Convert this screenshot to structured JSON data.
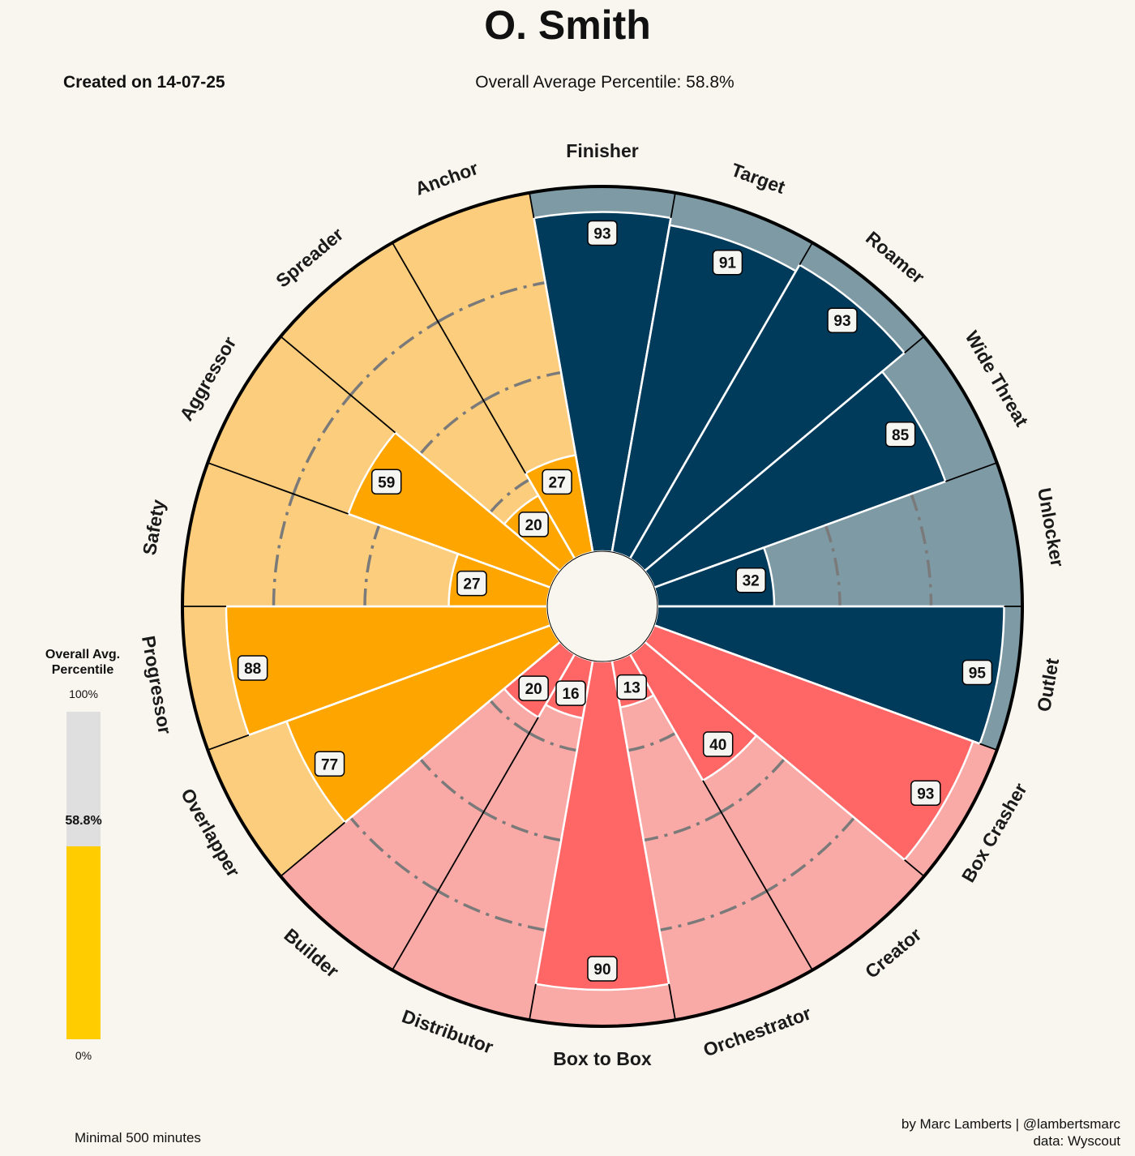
{
  "header": {
    "player_name": "O. Smith",
    "created_label": "Created on 14-07-25",
    "overall_label": "Overall Average Percentile: 58.8%"
  },
  "footer": {
    "minutes_note": "Minimal 500 minutes",
    "credit_line1": "by Marc Lamberts | @lambertsmarc",
    "credit_line2": "data: Wyscout"
  },
  "avg_bar": {
    "title_line1": "Overall Avg.",
    "title_line2": "Percentile",
    "top_label": "100%",
    "bottom_label": "0%",
    "value": 58.8,
    "value_label": "58.8%",
    "fill_color": "#ffcc00",
    "track_color": "#dfdfdf"
  },
  "chart_data": {
    "type": "polar-bar",
    "title": "O. Smith",
    "range": [
      0,
      100
    ],
    "reference_circles": [
      25,
      50,
      75
    ],
    "categories": [
      "Finisher",
      "Target",
      "Roamer",
      "Wide Threat",
      "Unlocker",
      "Outlet",
      "Box Crasher",
      "Creator",
      "Orchestrator",
      "Box to Box",
      "Distributor",
      "Builder",
      "Overlapper",
      "Progressor",
      "Safety",
      "Aggressor",
      "Spreader",
      "Anchor"
    ],
    "values": [
      93,
      91,
      93,
      85,
      32,
      95,
      93,
      40,
      13,
      90,
      16,
      20,
      77,
      88,
      27,
      59,
      20,
      27
    ],
    "groups": [
      {
        "name": "attacking",
        "indices": [
          0,
          1,
          2,
          3,
          4,
          5
        ],
        "fill": "#003b5c",
        "background": "#7e9aa5"
      },
      {
        "name": "creative",
        "indices": [
          6,
          7,
          8,
          9,
          10,
          11
        ],
        "fill": "#ff6666",
        "background": "#f9aaa6"
      },
      {
        "name": "defensive",
        "indices": [
          12,
          13,
          14,
          15,
          16,
          17
        ],
        "fill": "#ffa500",
        "background": "#fccd7c"
      }
    ]
  }
}
